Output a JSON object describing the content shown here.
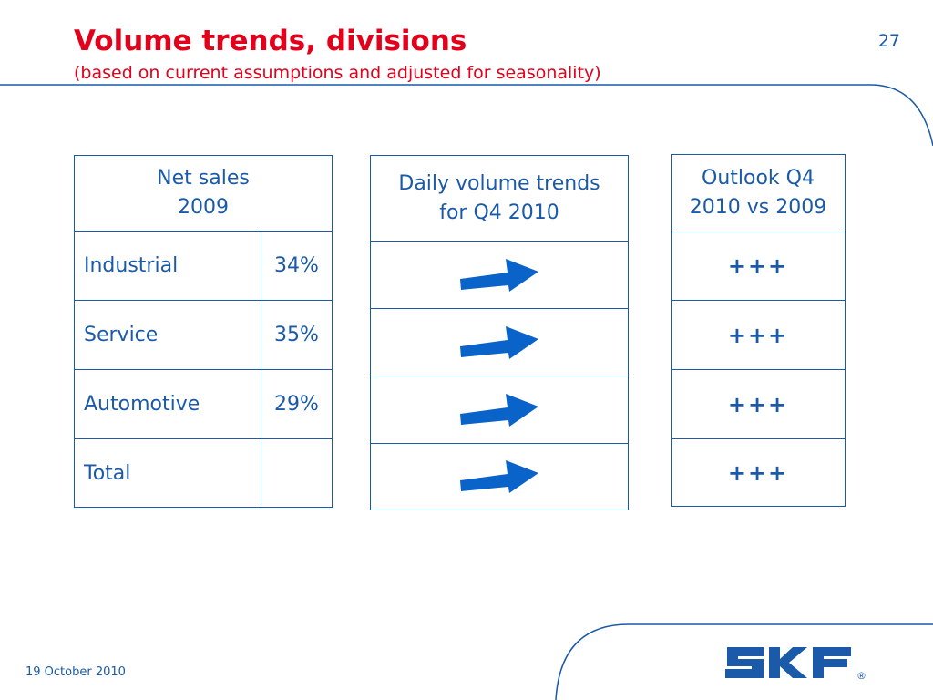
{
  "slide": {
    "title": "Volume trends, divisions",
    "subtitle": "(based on current assumptions and adjusted for seasonality)",
    "page_number": "27",
    "date": "19 October 2010",
    "logo_text": "SKF",
    "registered_mark": "®"
  },
  "net_sales": {
    "header_line1": "Net sales",
    "header_line2": "2009",
    "rows": [
      {
        "division": "Industrial",
        "share": "34%"
      },
      {
        "division": "Service",
        "share": "35%"
      },
      {
        "division": "Automotive",
        "share": "29%"
      },
      {
        "division": "Total",
        "share": ""
      }
    ]
  },
  "daily_trends": {
    "header_line1": "Daily volume trends",
    "header_line2": "for Q4 2010",
    "arrow_icon": "right-arrow-icon",
    "row_count": 4
  },
  "outlook": {
    "header_line1": "Outlook Q4",
    "header_line2": "2010 vs 2009",
    "rows": [
      "+++",
      "+++",
      "+++",
      "+++"
    ]
  },
  "colors": {
    "title_red": "#e3001b",
    "skf_blue": "#1a5aa8",
    "arrow_blue": "#0a63c9"
  }
}
